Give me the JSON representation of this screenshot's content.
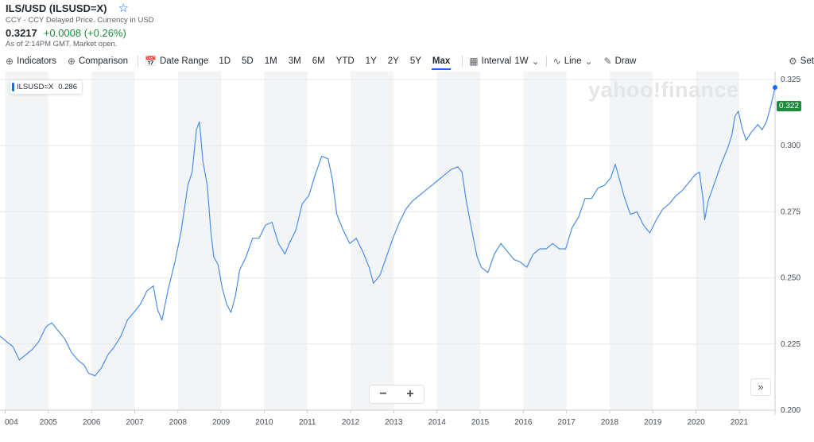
{
  "header": {
    "title": "ILS/USD (ILSUSD=X)",
    "subtitle": "CCY - CCY Delayed Price. Currency in USD",
    "price": "0.3217",
    "change": "+0.0008 (+0.26%)",
    "as_of": "As of 2:14PM GMT. Market open."
  },
  "toolbar": {
    "indicators": "Indicators",
    "comparison": "Comparison",
    "date_range": "Date Range",
    "ranges": [
      "1D",
      "5D",
      "1M",
      "3M",
      "6M",
      "YTD",
      "1Y",
      "2Y",
      "5Y",
      "Max"
    ],
    "active_range": "Max",
    "interval_label": "Interval",
    "interval_value": "1W",
    "chart_type": "Line",
    "draw": "Draw",
    "settings": "Set"
  },
  "watermark": "yahoo!finance",
  "legend": {
    "symbol": "ILSUSD=X",
    "value": "0.286"
  },
  "last_price_label": "0.322",
  "colors": {
    "line": "#4a8fe7",
    "up": "#1a8d3a",
    "accent": "#0f69ff"
  },
  "chart_data": {
    "type": "line",
    "x_ticks": [
      "004",
      "2005",
      "2006",
      "2007",
      "2008",
      "2009",
      "2010",
      "2011",
      "2012",
      "2013",
      "2014",
      "2015",
      "2016",
      "2017",
      "2018",
      "2019",
      "2020",
      "2021"
    ],
    "y_ticks": [
      "0.200",
      "0.225",
      "0.250",
      "0.275",
      "0.300",
      "0.325"
    ],
    "ylim": [
      0.2,
      0.328
    ],
    "xlim": [
      2003.9,
      2021.85
    ],
    "grid": true,
    "series": [
      {
        "name": "ILSUSD=X",
        "points": [
          [
            2003.9,
            0.228
          ],
          [
            2004.05,
            0.226
          ],
          [
            2004.2,
            0.224
          ],
          [
            2004.35,
            0.219
          ],
          [
            2004.5,
            0.221
          ],
          [
            2004.65,
            0.223
          ],
          [
            2004.8,
            0.226
          ],
          [
            2004.95,
            0.231
          ],
          [
            2005.0,
            0.232
          ],
          [
            2005.1,
            0.233
          ],
          [
            2005.25,
            0.23
          ],
          [
            2005.4,
            0.227
          ],
          [
            2005.55,
            0.222
          ],
          [
            2005.7,
            0.219
          ],
          [
            2005.85,
            0.217
          ],
          [
            2005.95,
            0.214
          ],
          [
            2006.1,
            0.213
          ],
          [
            2006.25,
            0.216
          ],
          [
            2006.4,
            0.221
          ],
          [
            2006.55,
            0.224
          ],
          [
            2006.7,
            0.228
          ],
          [
            2006.85,
            0.234
          ],
          [
            2007.0,
            0.237
          ],
          [
            2007.15,
            0.24
          ],
          [
            2007.3,
            0.245
          ],
          [
            2007.45,
            0.247
          ],
          [
            2007.55,
            0.238
          ],
          [
            2007.65,
            0.234
          ],
          [
            2007.8,
            0.246
          ],
          [
            2007.95,
            0.256
          ],
          [
            2008.1,
            0.268
          ],
          [
            2008.25,
            0.285
          ],
          [
            2008.35,
            0.29
          ],
          [
            2008.45,
            0.306
          ],
          [
            2008.52,
            0.309
          ],
          [
            2008.6,
            0.294
          ],
          [
            2008.7,
            0.285
          ],
          [
            2008.78,
            0.268
          ],
          [
            2008.85,
            0.258
          ],
          [
            2008.95,
            0.255
          ],
          [
            2009.05,
            0.246
          ],
          [
            2009.15,
            0.24
          ],
          [
            2009.25,
            0.237
          ],
          [
            2009.35,
            0.243
          ],
          [
            2009.45,
            0.253
          ],
          [
            2009.6,
            0.258
          ],
          [
            2009.75,
            0.265
          ],
          [
            2009.9,
            0.265
          ],
          [
            2010.05,
            0.27
          ],
          [
            2010.2,
            0.271
          ],
          [
            2010.35,
            0.263
          ],
          [
            2010.5,
            0.259
          ],
          [
            2010.6,
            0.263
          ],
          [
            2010.75,
            0.268
          ],
          [
            2010.9,
            0.278
          ],
          [
            2011.05,
            0.281
          ],
          [
            2011.2,
            0.289
          ],
          [
            2011.35,
            0.296
          ],
          [
            2011.5,
            0.295
          ],
          [
            2011.6,
            0.287
          ],
          [
            2011.7,
            0.274
          ],
          [
            2011.85,
            0.268
          ],
          [
            2012.0,
            0.263
          ],
          [
            2012.15,
            0.265
          ],
          [
            2012.3,
            0.26
          ],
          [
            2012.45,
            0.254
          ],
          [
            2012.55,
            0.248
          ],
          [
            2012.7,
            0.251
          ],
          [
            2012.85,
            0.258
          ],
          [
            2013.0,
            0.265
          ],
          [
            2013.15,
            0.271
          ],
          [
            2013.3,
            0.276
          ],
          [
            2013.45,
            0.279
          ],
          [
            2013.6,
            0.281
          ],
          [
            2013.75,
            0.283
          ],
          [
            2013.9,
            0.285
          ],
          [
            2014.05,
            0.287
          ],
          [
            2014.2,
            0.289
          ],
          [
            2014.35,
            0.291
          ],
          [
            2014.5,
            0.292
          ],
          [
            2014.6,
            0.29
          ],
          [
            2014.7,
            0.279
          ],
          [
            2014.85,
            0.266
          ],
          [
            2014.95,
            0.258
          ],
          [
            2015.05,
            0.254
          ],
          [
            2015.2,
            0.252
          ],
          [
            2015.35,
            0.259
          ],
          [
            2015.5,
            0.263
          ],
          [
            2015.65,
            0.26
          ],
          [
            2015.8,
            0.257
          ],
          [
            2015.95,
            0.256
          ],
          [
            2016.1,
            0.254
          ],
          [
            2016.25,
            0.259
          ],
          [
            2016.4,
            0.261
          ],
          [
            2016.55,
            0.261
          ],
          [
            2016.7,
            0.263
          ],
          [
            2016.85,
            0.261
          ],
          [
            2017.0,
            0.261
          ],
          [
            2017.15,
            0.269
          ],
          [
            2017.3,
            0.273
          ],
          [
            2017.45,
            0.28
          ],
          [
            2017.6,
            0.28
          ],
          [
            2017.75,
            0.284
          ],
          [
            2017.9,
            0.285
          ],
          [
            2018.05,
            0.288
          ],
          [
            2018.15,
            0.293
          ],
          [
            2018.25,
            0.287
          ],
          [
            2018.35,
            0.281
          ],
          [
            2018.5,
            0.274
          ],
          [
            2018.65,
            0.275
          ],
          [
            2018.8,
            0.27
          ],
          [
            2018.95,
            0.267
          ],
          [
            2019.1,
            0.272
          ],
          [
            2019.25,
            0.276
          ],
          [
            2019.4,
            0.278
          ],
          [
            2019.55,
            0.281
          ],
          [
            2019.7,
            0.283
          ],
          [
            2019.85,
            0.286
          ],
          [
            2020.0,
            0.289
          ],
          [
            2020.1,
            0.29
          ],
          [
            2020.18,
            0.28
          ],
          [
            2020.22,
            0.272
          ],
          [
            2020.3,
            0.279
          ],
          [
            2020.45,
            0.286
          ],
          [
            2020.6,
            0.293
          ],
          [
            2020.75,
            0.299
          ],
          [
            2020.85,
            0.304
          ],
          [
            2020.92,
            0.311
          ],
          [
            2021.0,
            0.313
          ],
          [
            2021.08,
            0.307
          ],
          [
            2021.18,
            0.302
          ],
          [
            2021.3,
            0.305
          ],
          [
            2021.45,
            0.308
          ],
          [
            2021.55,
            0.306
          ],
          [
            2021.65,
            0.309
          ],
          [
            2021.75,
            0.315
          ],
          [
            2021.85,
            0.322
          ]
        ]
      }
    ]
  }
}
